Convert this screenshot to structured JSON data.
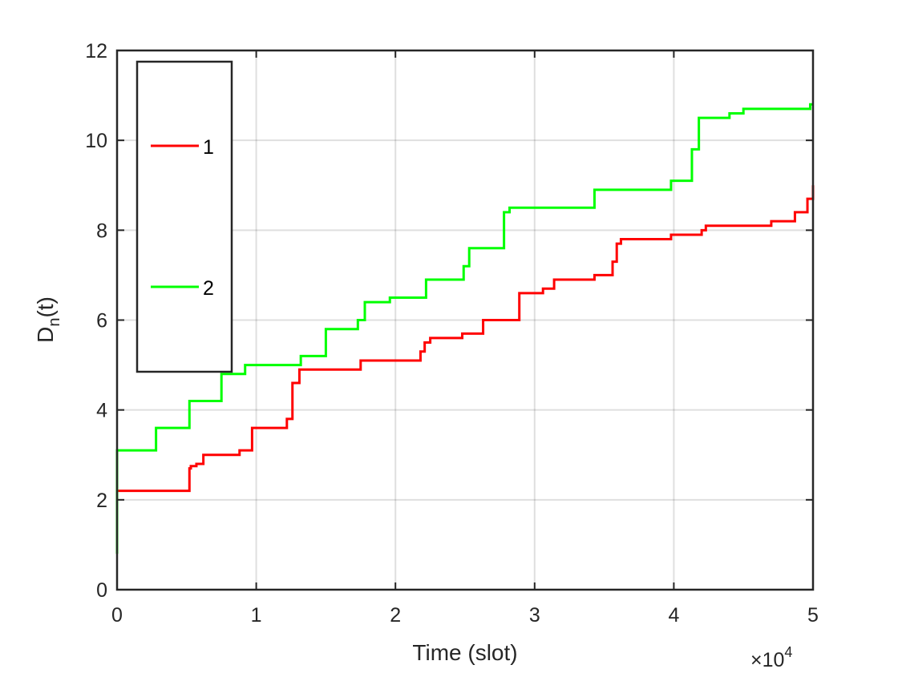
{
  "chart_data": {
    "type": "line",
    "step": true,
    "xlabel": "Time (slot)",
    "ylabel_main": "D",
    "ylabel_sub": "n",
    "ylabel_tail": "(t)",
    "x_exponent_base": "×10",
    "x_exponent_power": "4",
    "xlim": [
      0,
      5
    ],
    "ylim": [
      0,
      12
    ],
    "xticks": [
      "0",
      "1",
      "2",
      "3",
      "4",
      "5"
    ],
    "yticks": [
      "0",
      "2",
      "4",
      "6",
      "8",
      "10",
      "12"
    ],
    "grid": true,
    "legend_position": "top-left",
    "series": [
      {
        "name": "1",
        "color": "#ff0000",
        "x": [
          0,
          0,
          0.52,
          0.53,
          0.57,
          0.62,
          0.88,
          0.97,
          1.22,
          1.26,
          1.31,
          1.75,
          2.18,
          2.21,
          2.25,
          2.48,
          2.63,
          2.89,
          3.06,
          3.14,
          3.43,
          3.56,
          3.59,
          3.62,
          3.98,
          4.2,
          4.23,
          4.7,
          4.87,
          4.96,
          5.0
        ],
        "values": [
          0.8,
          2.2,
          2.7,
          2.75,
          2.8,
          3.0,
          3.1,
          3.6,
          3.8,
          4.6,
          4.9,
          5.1,
          5.3,
          5.5,
          5.6,
          5.7,
          6.0,
          6.6,
          6.7,
          6.9,
          7.0,
          7.3,
          7.7,
          7.8,
          7.9,
          8.0,
          8.1,
          8.2,
          8.4,
          8.7,
          9.0
        ]
      },
      {
        "name": "2",
        "color": "#00ff00",
        "x": [
          0,
          0,
          0.28,
          0.52,
          0.75,
          0.92,
          0.97,
          1.32,
          1.5,
          1.73,
          1.78,
          1.96,
          2.22,
          2.49,
          2.53,
          2.78,
          2.82,
          3.43,
          3.98,
          4.13,
          4.18,
          4.4,
          4.5,
          4.98,
          5.0
        ],
        "values": [
          0.8,
          3.1,
          3.6,
          4.2,
          4.8,
          5.0,
          5.0,
          5.2,
          5.8,
          6.0,
          6.4,
          6.5,
          6.9,
          7.2,
          7.6,
          8.4,
          8.5,
          8.9,
          9.1,
          9.8,
          10.5,
          10.6,
          10.7,
          10.8,
          10.8
        ]
      }
    ]
  }
}
